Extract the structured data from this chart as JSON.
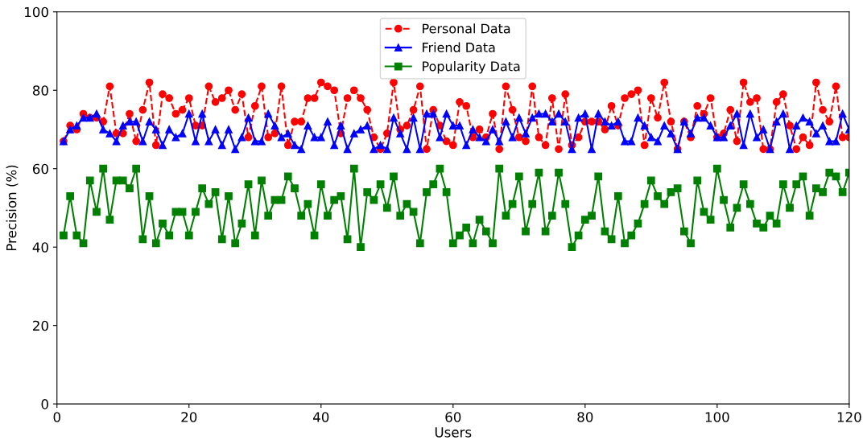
{
  "chart_data": {
    "type": "line",
    "xlabel": "Users",
    "ylabel": "Precision (%)",
    "x": [
      1,
      2,
      3,
      4,
      5,
      6,
      7,
      8,
      9,
      10,
      11,
      12,
      13,
      14,
      15,
      16,
      17,
      18,
      19,
      20,
      21,
      22,
      23,
      24,
      25,
      26,
      27,
      28,
      29,
      30,
      31,
      32,
      33,
      34,
      35,
      36,
      37,
      38,
      39,
      40,
      41,
      42,
      43,
      44,
      45,
      46,
      47,
      48,
      49,
      50,
      51,
      52,
      53,
      54,
      55,
      56,
      57,
      58,
      59,
      60,
      61,
      62,
      63,
      64,
      65,
      66,
      67,
      68,
      69,
      70,
      71,
      72,
      73,
      74,
      75,
      76,
      77,
      78,
      79,
      80,
      81,
      82,
      83,
      84,
      85,
      86,
      87,
      88,
      89,
      90,
      91,
      92,
      93,
      94,
      95,
      96,
      97,
      98,
      99,
      100,
      101,
      102,
      103,
      104,
      105,
      106,
      107,
      108,
      109,
      110,
      111,
      112,
      113,
      114,
      115,
      116,
      117,
      118,
      119,
      120
    ],
    "series": [
      {
        "name": "Personal Data",
        "color": "#ff0000",
        "marker": "circle",
        "line_style": "dashed",
        "values": [
          67,
          71,
          70,
          74,
          73,
          73,
          72,
          81,
          69,
          69,
          74,
          67,
          75,
          82,
          66,
          79,
          78,
          74,
          75,
          78,
          71,
          71,
          81,
          77,
          78,
          80,
          75,
          79,
          68,
          76,
          81,
          68,
          69,
          81,
          66,
          72,
          72,
          78,
          78,
          82,
          81,
          80,
          69,
          78,
          80,
          78,
          75,
          68,
          65,
          69,
          82,
          70,
          71,
          75,
          81,
          65,
          75,
          71,
          67,
          66,
          77,
          76,
          68,
          70,
          68,
          74,
          65,
          81,
          75,
          68,
          67,
          81,
          68,
          66,
          78,
          65,
          79,
          66,
          68,
          72,
          72,
          72,
          70,
          76,
          71,
          78,
          79,
          80,
          66,
          78,
          73,
          82,
          72,
          65,
          72,
          68,
          76,
          74,
          78,
          68,
          69,
          75,
          67,
          82,
          77,
          78,
          65,
          65,
          77,
          79,
          71,
          65,
          68,
          66,
          82,
          75,
          72,
          81,
          68,
          68
        ]
      },
      {
        "name": "Friend Data",
        "color": "#0000ff",
        "marker": "triangle",
        "line_style": "solid",
        "values": [
          67,
          70,
          71,
          73,
          73,
          74,
          70,
          69,
          67,
          71,
          72,
          72,
          67,
          72,
          70,
          66,
          70,
          68,
          69,
          74,
          67,
          74,
          67,
          70,
          66,
          70,
          65,
          68,
          73,
          67,
          67,
          74,
          71,
          68,
          69,
          66,
          65,
          71,
          68,
          68,
          72,
          66,
          71,
          65,
          69,
          70,
          71,
          65,
          66,
          65,
          73,
          69,
          65,
          73,
          65,
          74,
          74,
          68,
          74,
          71,
          71,
          66,
          70,
          68,
          67,
          70,
          67,
          72,
          68,
          73,
          69,
          73,
          74,
          74,
          72,
          74,
          72,
          65,
          73,
          74,
          65,
          74,
          72,
          71,
          72,
          67,
          67,
          73,
          71,
          68,
          67,
          71,
          69,
          65,
          72,
          69,
          73,
          73,
          71,
          68,
          68,
          71,
          74,
          66,
          74,
          68,
          70,
          65,
          72,
          74,
          65,
          71,
          73,
          72,
          69,
          71,
          67,
          67,
          74,
          70
        ]
      },
      {
        "name": "Popularity Data",
        "color": "#008000",
        "marker": "square",
        "line_style": "solid",
        "values": [
          43,
          53,
          43,
          41,
          57,
          49,
          60,
          47,
          57,
          57,
          55,
          60,
          42,
          53,
          41,
          46,
          43,
          49,
          49,
          43,
          49,
          55,
          51,
          54,
          42,
          53,
          41,
          46,
          56,
          43,
          57,
          48,
          52,
          52,
          58,
          55,
          48,
          51,
          43,
          56,
          48,
          52,
          53,
          42,
          60,
          40,
          54,
          52,
          56,
          50,
          58,
          48,
          51,
          49,
          41,
          54,
          56,
          60,
          54,
          41,
          43,
          45,
          41,
          47,
          44,
          41,
          60,
          48,
          51,
          58,
          44,
          51,
          59,
          44,
          48,
          59,
          51,
          40,
          43,
          47,
          48,
          58,
          44,
          42,
          53,
          41,
          43,
          46,
          51,
          57,
          53,
          51,
          54,
          55,
          44,
          41,
          57,
          49,
          47,
          60,
          52,
          45,
          50,
          56,
          51,
          46,
          45,
          48,
          46,
          56,
          50,
          56,
          58,
          48,
          55,
          54,
          59,
          58,
          54,
          59
        ]
      }
    ],
    "xlim": [
      0,
      120
    ],
    "xticks": [
      0,
      20,
      40,
      60,
      80,
      100,
      120
    ],
    "ylim": [
      0,
      100
    ],
    "yticks": [
      0,
      20,
      40,
      60,
      80,
      100
    ],
    "grid": false,
    "legend": "top"
  }
}
